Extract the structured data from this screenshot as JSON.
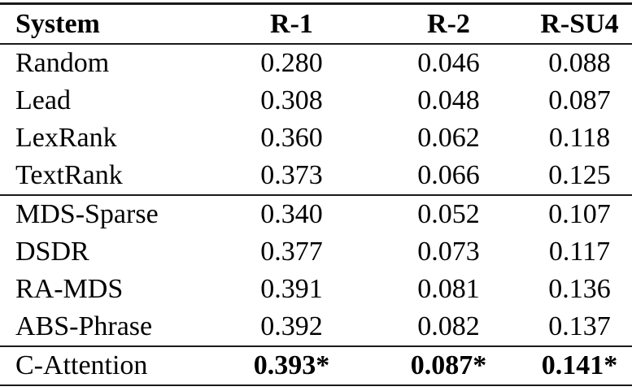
{
  "table": {
    "title_semantic": "summarization-results-table",
    "columns": [
      "System",
      "R-1",
      "R-2",
      "R-SU4"
    ],
    "rows": [
      [
        "Random",
        "0.280",
        "0.046",
        "0.088"
      ],
      [
        "Lead",
        "0.308",
        "0.048",
        "0.087"
      ],
      [
        "LexRank",
        "0.360",
        "0.062",
        "0.118"
      ],
      [
        "TextRank",
        "0.373",
        "0.066",
        "0.125"
      ],
      [
        "MDS-Sparse",
        "0.340",
        "0.052",
        "0.107"
      ],
      [
        "DSDR",
        "0.377",
        "0.073",
        "0.117"
      ],
      [
        "RA-MDS",
        "0.391",
        "0.081",
        "0.136"
      ],
      [
        "ABS-Phrase",
        "0.392",
        "0.082",
        "0.137"
      ],
      [
        "C-Attention",
        "0.393*",
        "0.087*",
        "0.141*"
      ]
    ],
    "sections": [
      [
        0,
        3
      ],
      [
        4,
        7
      ],
      [
        8,
        8
      ]
    ],
    "bold_row_index": 8
  },
  "colors": {
    "background": "#ffffff",
    "text": "#000000",
    "rule": "#1a1a1a"
  }
}
